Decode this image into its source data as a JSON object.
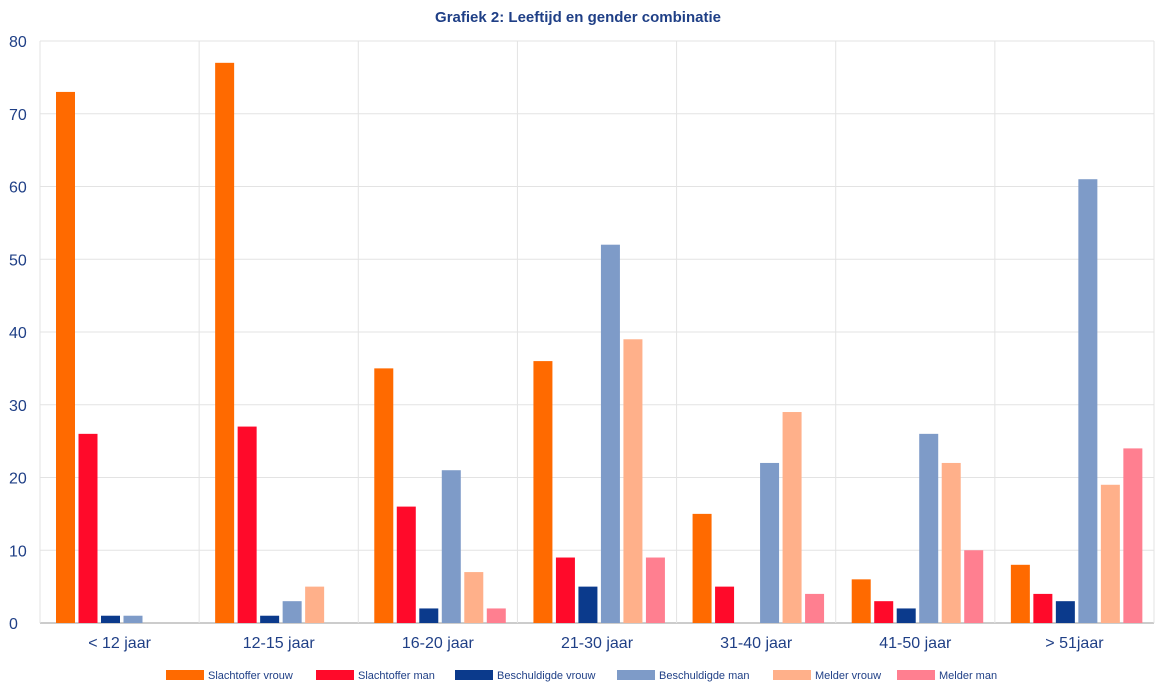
{
  "chart_data": {
    "type": "bar",
    "title": "Grafiek 2: Leeftijd en gender combinatie",
    "xlabel": "",
    "ylabel": "",
    "ylim": [
      0,
      80
    ],
    "yticks": [
      0,
      10,
      20,
      30,
      40,
      50,
      60,
      70,
      80
    ],
    "grid": true,
    "legend_position": "bottom",
    "categories": [
      "< 12 jaar",
      "12-15 jaar",
      "16-20 jaar",
      "21-30 jaar",
      "31-40 jaar",
      "41-50 jaar",
      "> 51jaar"
    ],
    "series": [
      {
        "name": "Slachtoffer vrouw",
        "color": "#ff6a00",
        "values": [
          73,
          77,
          35,
          36,
          15,
          6,
          8
        ]
      },
      {
        "name": "Slachtoffer man",
        "color": "#ff0a2a",
        "values": [
          26,
          27,
          16,
          9,
          5,
          3,
          4
        ]
      },
      {
        "name": "Beschuldigde vrouw",
        "color": "#0b3a8c",
        "values": [
          1,
          1,
          2,
          5,
          0,
          2,
          3
        ]
      },
      {
        "name": "Beschuldigde man",
        "color": "#7e9bc8",
        "values": [
          1,
          3,
          21,
          52,
          22,
          26,
          61
        ]
      },
      {
        "name": "Melder vrouw",
        "color": "#ffb08a",
        "values": [
          0,
          5,
          7,
          39,
          29,
          22,
          19
        ]
      },
      {
        "name": "Melder man",
        "color": "#ff7f90",
        "values": [
          0,
          0,
          2,
          9,
          4,
          10,
          24
        ]
      }
    ]
  }
}
